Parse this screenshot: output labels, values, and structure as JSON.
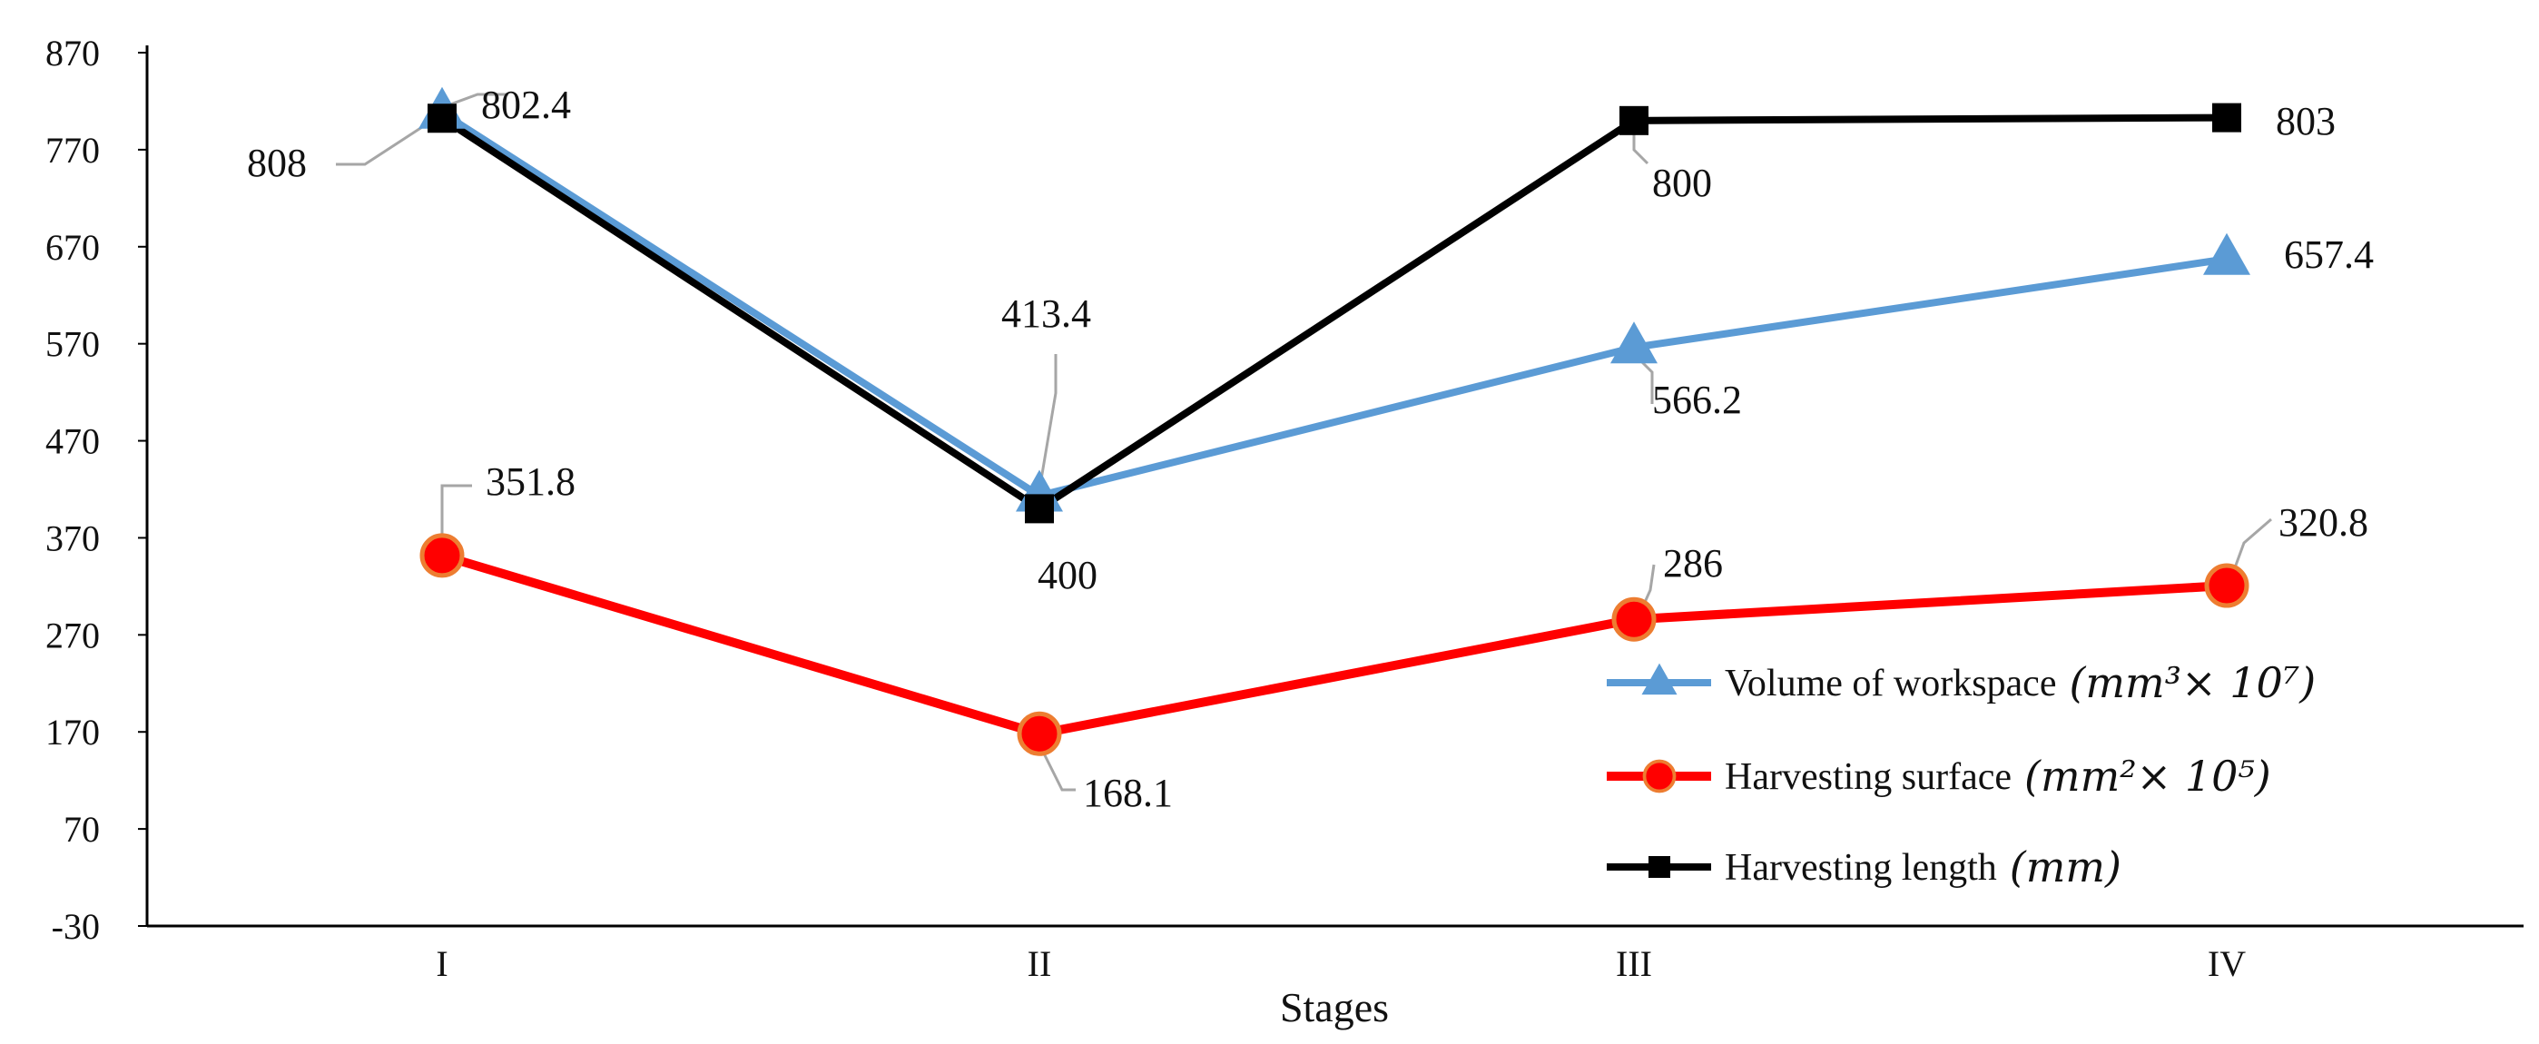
{
  "chart_data": {
    "type": "line",
    "title": "",
    "xlabel": "Stages",
    "ylabel": "",
    "categories": [
      "I",
      "II",
      "III",
      "IV"
    ],
    "ylim": [
      -30,
      870
    ],
    "yticks": [
      870,
      770,
      670,
      570,
      470,
      370,
      270,
      170,
      70,
      -30
    ],
    "grid": false,
    "legend_position": "bottom-right",
    "series": [
      {
        "name": "Volume of workspace",
        "unit": "(mm³× 10⁷)",
        "color": "#5b9bd5",
        "marker": "triangle",
        "values": [
          808,
          413.4,
          566.2,
          657.4
        ],
        "labels": [
          "808",
          "413.4",
          "566.2",
          "657.4"
        ]
      },
      {
        "name": "Harvesting surface",
        "unit": "(mm²× 10⁵)",
        "color": "#ff0000",
        "marker_edge": "#ed7d31",
        "marker": "circle",
        "values": [
          351.8,
          168.1,
          286,
          320.8
        ],
        "labels": [
          "351.8",
          "168.1",
          "286",
          "320.8"
        ]
      },
      {
        "name": "Harvesting length",
        "unit": "(mm)",
        "color": "#000000",
        "marker": "square",
        "values": [
          802.4,
          400,
          800,
          803
        ],
        "labels": [
          "802.4",
          "400",
          "800",
          "803"
        ]
      }
    ]
  }
}
